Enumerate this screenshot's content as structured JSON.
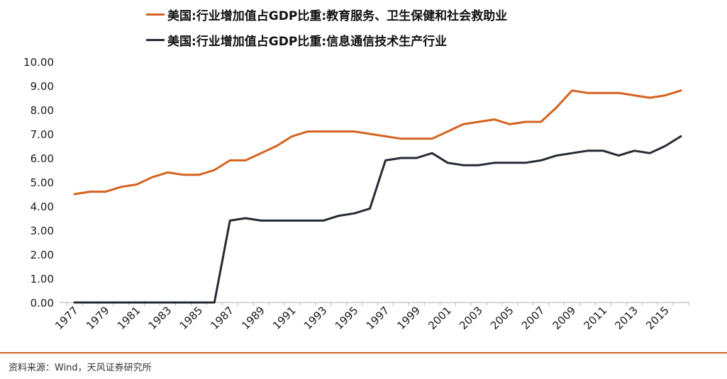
{
  "colors": {
    "orange": "#d5621f",
    "dark": "#262a33",
    "axis": "#bdbdbd"
  },
  "chart_data": {
    "type": "line",
    "ylim": [
      0,
      10
    ],
    "y_ticks": [
      "0.00",
      "1.00",
      "2.00",
      "3.00",
      "4.00",
      "5.00",
      "6.00",
      "7.00",
      "8.00",
      "9.00",
      "10.00"
    ],
    "x": [
      1977,
      1978,
      1979,
      1980,
      1981,
      1982,
      1983,
      1984,
      1985,
      1986,
      1987,
      1988,
      1989,
      1990,
      1991,
      1992,
      1993,
      1994,
      1995,
      1996,
      1997,
      1998,
      1999,
      2000,
      2001,
      2002,
      2003,
      2004,
      2005,
      2006,
      2007,
      2008,
      2009,
      2010,
      2011,
      2012,
      2013,
      2014,
      2015,
      2016
    ],
    "x_tick_labels": [
      "1977",
      "1979",
      "1981",
      "1983",
      "1985",
      "1987",
      "1989",
      "1991",
      "1993",
      "1995",
      "1997",
      "1999",
      "2001",
      "2003",
      "2005",
      "2007",
      "2009",
      "2011",
      "2013",
      "2015"
    ],
    "grid": false,
    "legend_position": "top",
    "series": [
      {
        "name": "美国:行业增加值占GDP比重:教育服务、卫生保健和社会救助业",
        "color": "#d5621f",
        "values": [
          4.5,
          4.6,
          4.6,
          4.8,
          4.9,
          5.2,
          5.4,
          5.3,
          5.3,
          5.5,
          5.9,
          5.9,
          6.2,
          6.5,
          6.9,
          7.1,
          7.1,
          7.1,
          7.1,
          7.0,
          6.9,
          6.8,
          6.8,
          6.8,
          7.1,
          7.4,
          7.5,
          7.6,
          7.4,
          7.5,
          7.5,
          8.1,
          8.8,
          8.7,
          8.7,
          8.7,
          8.6,
          8.5,
          8.6,
          8.8
        ]
      },
      {
        "name": "美国:行业增加值占GDP比重:信息通信技术生产行业",
        "color": "#262a33",
        "values": [
          0,
          0,
          0,
          0,
          0,
          0,
          0,
          0,
          0,
          0,
          3.4,
          3.5,
          3.4,
          3.4,
          3.4,
          3.4,
          3.4,
          3.6,
          3.7,
          3.9,
          5.9,
          6.0,
          6.0,
          6.2,
          5.8,
          5.7,
          5.7,
          5.8,
          5.8,
          5.8,
          5.9,
          6.1,
          6.2,
          6.3,
          6.3,
          6.1,
          6.3,
          6.2,
          6.5,
          6.9
        ]
      }
    ]
  },
  "source_text": "资料来源：Wind，天风证券研究所"
}
